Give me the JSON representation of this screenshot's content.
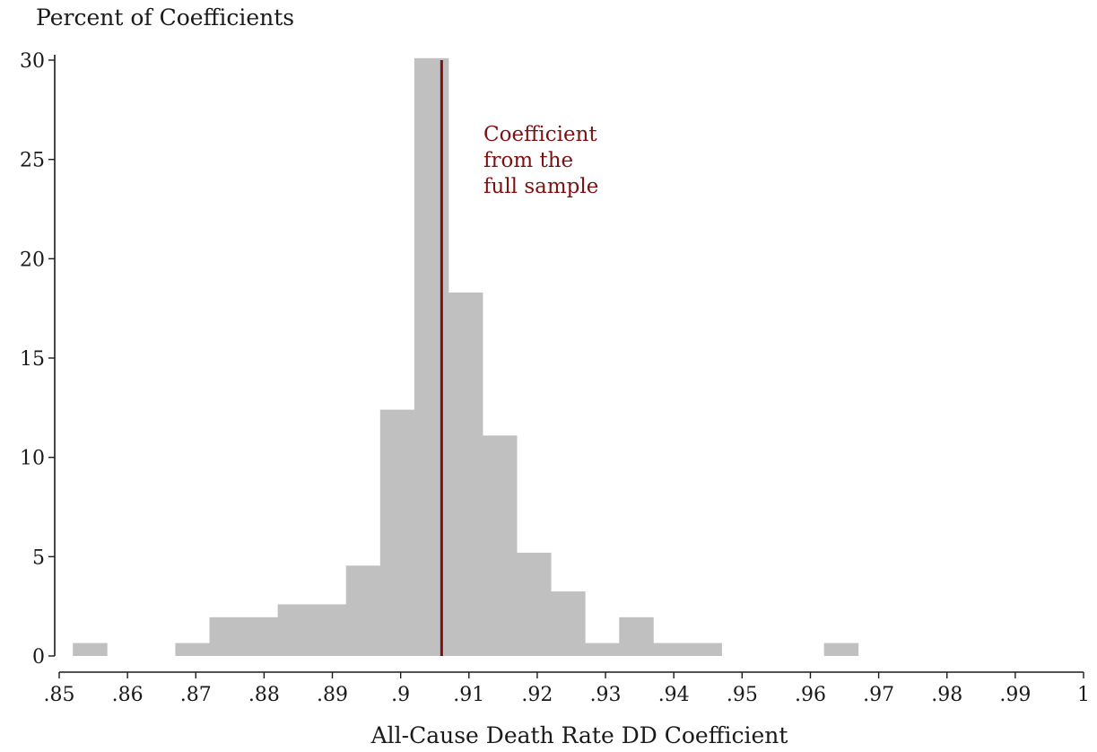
{
  "chart_data": {
    "type": "bar",
    "subtype": "histogram",
    "ylabel": "Percent of Coefficients",
    "xlabel": "All-Cause Death Rate DD Coefficient",
    "xlim": [
      0.85,
      1.0
    ],
    "ylim": [
      0,
      30
    ],
    "bin_width": 0.005,
    "x_ticks": [
      0.85,
      0.86,
      0.87,
      0.88,
      0.89,
      0.9,
      0.91,
      0.92,
      0.93,
      0.94,
      0.95,
      0.96,
      0.97,
      0.98,
      0.99,
      1.0
    ],
    "x_tick_labels": [
      ".85",
      ".86",
      ".87",
      ".88",
      ".89",
      ".9",
      ".91",
      ".92",
      ".93",
      ".94",
      ".95",
      ".96",
      ".97",
      ".98",
      ".99",
      "1"
    ],
    "y_ticks": [
      0,
      5,
      10,
      15,
      20,
      25,
      30
    ],
    "y_tick_labels": [
      "0",
      "5",
      "10",
      "15",
      "20",
      "25",
      "30"
    ],
    "bins": [
      {
        "start": 0.852,
        "end": 0.857,
        "value": 0.65
      },
      {
        "start": 0.867,
        "end": 0.872,
        "value": 0.65
      },
      {
        "start": 0.872,
        "end": 0.877,
        "value": 1.95
      },
      {
        "start": 0.877,
        "end": 0.882,
        "value": 1.95
      },
      {
        "start": 0.882,
        "end": 0.887,
        "value": 2.6
      },
      {
        "start": 0.887,
        "end": 0.892,
        "value": 2.6
      },
      {
        "start": 0.892,
        "end": 0.897,
        "value": 4.55
      },
      {
        "start": 0.897,
        "end": 0.902,
        "value": 12.4
      },
      {
        "start": 0.902,
        "end": 0.907,
        "value": 30.1
      },
      {
        "start": 0.907,
        "end": 0.912,
        "value": 18.3
      },
      {
        "start": 0.912,
        "end": 0.917,
        "value": 11.1
      },
      {
        "start": 0.917,
        "end": 0.922,
        "value": 5.2
      },
      {
        "start": 0.922,
        "end": 0.927,
        "value": 3.25
      },
      {
        "start": 0.927,
        "end": 0.932,
        "value": 0.65
      },
      {
        "start": 0.932,
        "end": 0.937,
        "value": 1.95
      },
      {
        "start": 0.937,
        "end": 0.942,
        "value": 0.65
      },
      {
        "start": 0.942,
        "end": 0.947,
        "value": 0.65
      },
      {
        "start": 0.962,
        "end": 0.967,
        "value": 0.65
      }
    ],
    "reference_line": {
      "x": 0.906,
      "y_top": 30,
      "label_lines": [
        "Coefficient",
        "from the",
        "full sample"
      ],
      "color": "#7b1113"
    },
    "bar_color": "#c0c0c0",
    "grid": false,
    "legend": "none"
  }
}
